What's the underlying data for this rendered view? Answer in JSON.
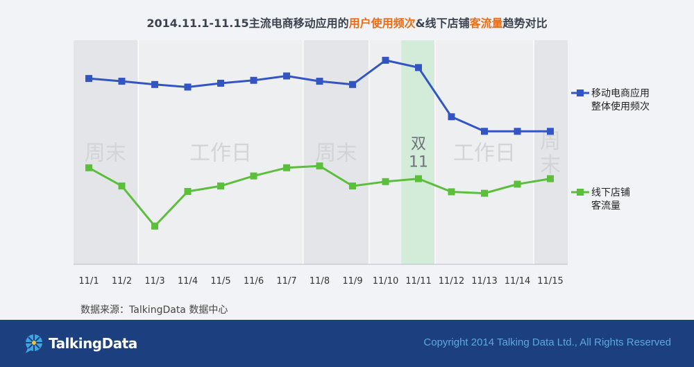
{
  "title": {
    "part1": "2014.11.1-11.15主流电商移动应用的",
    "part2": "用户使用频次",
    "part3": "&线下店铺",
    "part4": "客流量",
    "part5": "趋势对比"
  },
  "source": "数据来源：TalkingData 数据中心",
  "footer": {
    "logo_text": "TalkingData",
    "copyright": "Copyright 2014 Talking Data Ltd., All Rights Reserved"
  },
  "colors": {
    "blue_series": "#3355c4",
    "green_series": "#5bbf3c",
    "highlight_band": "#d2ecd9",
    "title_highlight": "#ef6c14",
    "footer_bg": "#1c3f80"
  },
  "chart_data": {
    "type": "line",
    "title": "2014.11.1-11.15主流电商移动应用的用户使用频次&线下店铺客流量趋势对比",
    "categories": [
      "11/1",
      "11/2",
      "11/3",
      "11/4",
      "11/5",
      "11/6",
      "11/7",
      "11/8",
      "11/9",
      "11/10",
      "11/11",
      "11/12",
      "11/13",
      "11/14",
      "11/15"
    ],
    "series": [
      {
        "name": "移动电商应用整体使用频次",
        "legend_lines": [
          "移动电商应用",
          "整体使用频次"
        ],
        "color": "#3355c4",
        "values": [
          82,
          80.5,
          78.7,
          77.3,
          79.4,
          81,
          83.4,
          80.5,
          78.7,
          92,
          88,
          61,
          53,
          53,
          53
        ]
      },
      {
        "name": "线下店铺客流量",
        "legend_lines": [
          "线下店铺",
          "客流量"
        ],
        "color": "#5bbf3c",
        "values": [
          33,
          23,
          1,
          20,
          23,
          28.5,
          33,
          34,
          23,
          25.4,
          27,
          19.8,
          19,
          24,
          27
        ]
      }
    ],
    "ylim": [
      -20,
      103
    ],
    "grid": false,
    "legend_position": "right",
    "periods": [
      {
        "label": "周末",
        "from": "11/1",
        "to": "11/2",
        "shade": "weekend"
      },
      {
        "label": "工作日",
        "from": "11/3",
        "to": "11/7",
        "shade": "workday"
      },
      {
        "label": "周末",
        "from": "11/8",
        "to": "11/9",
        "shade": "weekend"
      },
      {
        "label": "双11",
        "label_lines": [
          "双",
          "11"
        ],
        "from": "11/10",
        "to": "11/11",
        "shade": "highlight",
        "highlight_at": "11/11"
      },
      {
        "label": "工作日",
        "from": "11/12",
        "to": "11/14",
        "shade": "workday"
      },
      {
        "label": "周末",
        "label_lines": [
          "周",
          "末"
        ],
        "from": "11/15",
        "to": "11/15",
        "shade": "weekend"
      }
    ]
  }
}
